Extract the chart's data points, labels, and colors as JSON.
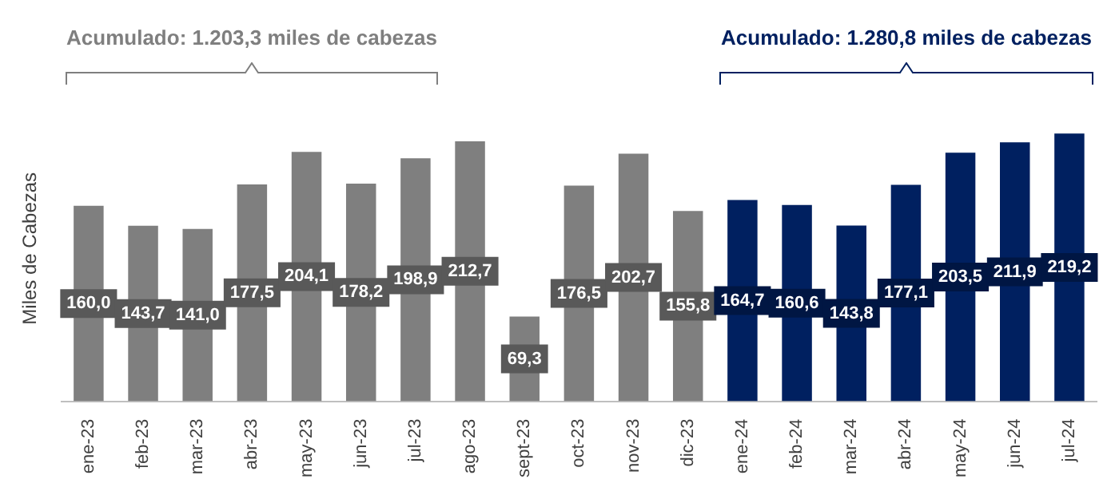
{
  "chart_data": {
    "type": "bar",
    "ylabel": "Miles de Cabezas",
    "categories": [
      "ene-23",
      "feb-23",
      "mar-23",
      "abr-23",
      "may-23",
      "jun-23",
      "jul-23",
      "ago-23",
      "sept-23",
      "oct-23",
      "nov-23",
      "dic-23",
      "ene-24",
      "feb-24",
      "mar-24",
      "abr-24",
      "may-24",
      "jun-24",
      "jul-24"
    ],
    "values": [
      160.0,
      143.7,
      141.0,
      177.5,
      204.1,
      178.2,
      198.9,
      212.7,
      69.3,
      176.5,
      202.7,
      155.8,
      164.7,
      160.6,
      143.8,
      177.1,
      203.5,
      211.9,
      219.2
    ],
    "colors": [
      "#7f7f7f",
      "#7f7f7f",
      "#7f7f7f",
      "#7f7f7f",
      "#7f7f7f",
      "#7f7f7f",
      "#7f7f7f",
      "#7f7f7f",
      "#7f7f7f",
      "#7f7f7f",
      "#7f7f7f",
      "#7f7f7f",
      "#002060",
      "#002060",
      "#002060",
      "#002060",
      "#002060",
      "#002060",
      "#002060"
    ],
    "value_labels": [
      "160,0",
      "143,7",
      "141,0",
      "177,5",
      "204,1",
      "178,2",
      "198,9",
      "212,7",
      "69,3",
      "176,5",
      "202,7",
      "155,8",
      "164,7",
      "160,6",
      "143,8",
      "177,1",
      "203,5",
      "211,9",
      "219,2"
    ],
    "annotations": [
      "Acumulado: 1.203,3 miles de cabezas",
      "Acumulado: 1.280,8 miles de cabezas"
    ],
    "tick_labels": "x",
    "grid": false,
    "legend": false
  }
}
